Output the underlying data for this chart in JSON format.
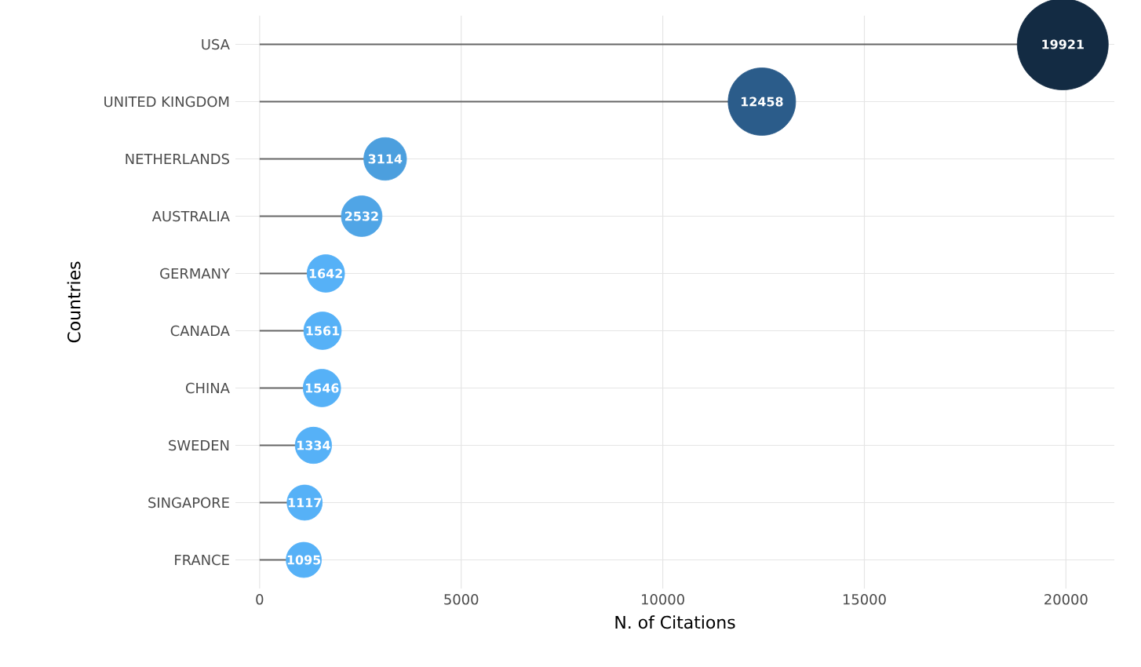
{
  "chart_data": {
    "type": "lollipop",
    "orientation": "horizontal",
    "xlabel": "N. of Citations",
    "ylabel": "Countries",
    "categories": [
      "USA",
      "UNITED KINGDOM",
      "NETHERLANDS",
      "AUSTRALIA",
      "GERMANY",
      "CANADA",
      "CHINA",
      "SWEDEN",
      "SINGAPORE",
      "FRANCE"
    ],
    "values": [
      19921,
      12458,
      3114,
      2532,
      1642,
      1561,
      1546,
      1334,
      1117,
      1095
    ],
    "sizes": [
      1,
      0.55,
      0.22,
      0.2,
      0.17,
      0.17,
      0.17,
      0.16,
      0.15,
      0.15
    ],
    "colors": [
      "#132b43",
      "#2b5c8a",
      "#4c9fde",
      "#50a5e6",
      "#56b1f7",
      "#56b1f7",
      "#56b1f7",
      "#56b1f7",
      "#56b1f7",
      "#56b1f7"
    ],
    "xlim": [
      -600,
      21200
    ],
    "xticks": [
      0,
      5000,
      10000,
      15000,
      20000
    ],
    "grid": true,
    "data_labels": true
  }
}
